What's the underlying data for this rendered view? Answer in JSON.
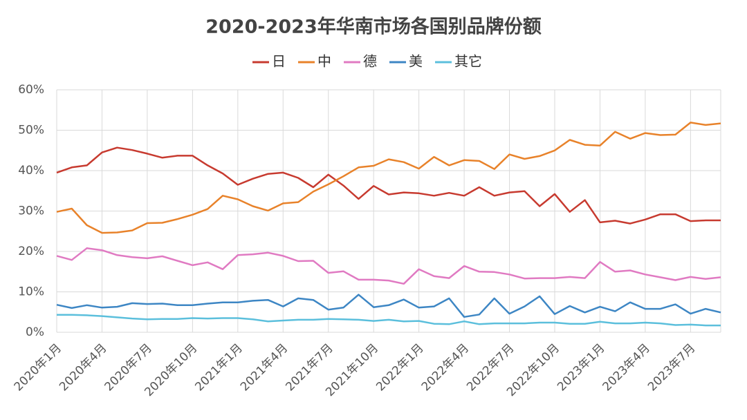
{
  "chart_data": {
    "type": "line",
    "title": "2020-2023年华南市场各国别品牌份额",
    "categories": [
      "2020年1月",
      null,
      null,
      "2020年4月",
      null,
      null,
      "2020年7月",
      null,
      null,
      "2020年10月",
      null,
      null,
      "2021年1月",
      null,
      null,
      "2021年4月",
      null,
      null,
      "2021年7月",
      null,
      null,
      "2021年10月",
      null,
      null,
      "2022年1月",
      null,
      null,
      "2022年4月",
      null,
      null,
      "2022年7月",
      null,
      null,
      "2022年10月",
      null,
      null,
      "2023年1月",
      null,
      null,
      "2023年4月",
      null,
      null,
      "2023年7月",
      null,
      null
    ],
    "series": [
      {
        "name": "日",
        "color": "#c73a2f",
        "values": [
          39.5,
          40.8,
          41.3,
          44.5,
          45.7,
          45.1,
          44.2,
          43.2,
          43.7,
          43.7,
          41.3,
          39.3,
          36.5,
          38.0,
          39.2,
          39.5,
          38.2,
          35.9,
          39.0,
          36.3,
          33.0,
          36.2,
          34.1,
          34.6,
          34.4,
          33.8,
          34.5,
          33.8,
          35.9,
          33.8,
          34.6,
          34.9,
          31.2,
          34.2,
          29.8,
          32.7,
          27.2,
          27.6,
          26.9,
          27.9,
          29.2,
          29.2,
          27.5,
          27.7,
          27.7
        ]
      },
      {
        "name": "中",
        "color": "#e8822a",
        "values": [
          29.8,
          30.6,
          26.5,
          24.6,
          24.7,
          25.2,
          27.0,
          27.1,
          28.0,
          29.1,
          30.5,
          33.8,
          32.9,
          31.2,
          30.1,
          31.9,
          32.2,
          34.8,
          36.6,
          38.6,
          40.8,
          41.2,
          42.8,
          42.1,
          40.5,
          43.4,
          41.3,
          42.6,
          42.4,
          40.4,
          44.0,
          42.9,
          43.6,
          45.0,
          47.6,
          46.4,
          46.2,
          49.6,
          47.9,
          49.3,
          48.8,
          48.9,
          51.9,
          51.3,
          51.7
        ]
      },
      {
        "name": "德",
        "color": "#e07ac2",
        "values": [
          18.9,
          17.9,
          20.8,
          20.3,
          19.1,
          18.6,
          18.3,
          18.8,
          17.7,
          16.6,
          17.3,
          15.6,
          19.1,
          19.3,
          19.7,
          18.9,
          17.6,
          17.7,
          14.7,
          15.1,
          13.0,
          13.0,
          12.8,
          12.0,
          15.6,
          13.9,
          13.4,
          16.4,
          15.0,
          14.9,
          14.3,
          13.3,
          13.4,
          13.4,
          13.7,
          13.4,
          17.4,
          15.0,
          15.3,
          14.3,
          13.6,
          12.9,
          13.7,
          13.2,
          13.6
        ]
      },
      {
        "name": "美",
        "color": "#3d86c4",
        "values": [
          6.8,
          6.0,
          6.7,
          6.1,
          6.3,
          7.2,
          7.0,
          7.1,
          6.7,
          6.7,
          7.1,
          7.4,
          7.4,
          7.8,
          8.0,
          6.4,
          8.4,
          8.0,
          5.6,
          6.1,
          9.3,
          6.2,
          6.7,
          8.1,
          6.1,
          6.4,
          8.4,
          3.8,
          4.4,
          8.4,
          4.6,
          6.4,
          8.9,
          4.5,
          6.5,
          4.9,
          6.3,
          5.2,
          7.4,
          5.8,
          5.8,
          6.9,
          4.6,
          5.8,
          4.9
        ]
      },
      {
        "name": "其它",
        "color": "#5bbfdc",
        "values": [
          4.3,
          4.3,
          4.2,
          4.0,
          3.7,
          3.4,
          3.2,
          3.3,
          3.3,
          3.5,
          3.4,
          3.5,
          3.5,
          3.2,
          2.7,
          2.9,
          3.1,
          3.1,
          3.3,
          3.2,
          3.1,
          2.8,
          3.1,
          2.7,
          2.8,
          2.1,
          2.0,
          2.7,
          2.0,
          2.2,
          2.2,
          2.2,
          2.4,
          2.4,
          2.1,
          2.1,
          2.6,
          2.2,
          2.2,
          2.4,
          2.2,
          1.8,
          1.9,
          1.7,
          1.7
        ]
      }
    ],
    "ylim": [
      0,
      60
    ],
    "yticks": [
      {
        "value": 0,
        "label": "0%"
      },
      {
        "value": 10,
        "label": "10%"
      },
      {
        "value": 20,
        "label": "20%"
      },
      {
        "value": 30,
        "label": "30%"
      },
      {
        "value": 40,
        "label": "40%"
      },
      {
        "value": 50,
        "label": "50%"
      },
      {
        "value": 60,
        "label": "60%"
      }
    ],
    "grid": true,
    "legend": "top"
  }
}
